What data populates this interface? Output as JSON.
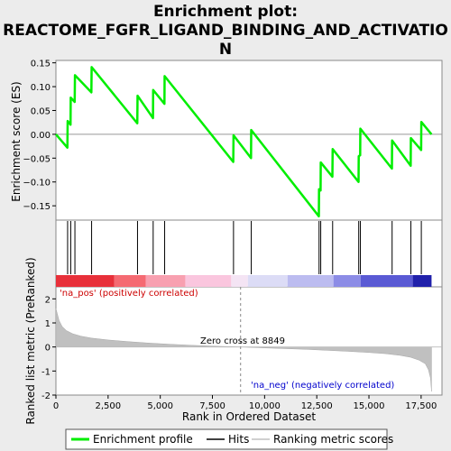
{
  "chart_data": {
    "type": "line",
    "title_lines": [
      "Enrichment plot:",
      "REACTOME_FGFR_LIGAND_BINDING_AND_ACTIVATIO",
      "N"
    ],
    "panels": {
      "enrichment": {
        "ylabel": "Enrichment score (ES)",
        "ylim": [
          -0.18,
          0.155
        ],
        "yticks": [
          -0.15,
          -0.1,
          -0.05,
          0.0,
          0.05,
          0.1,
          0.15
        ],
        "ytick_labels": [
          "−0.15",
          "−0.10",
          "−0.05",
          "0.00",
          "0.05",
          "0.10",
          "0.15"
        ],
        "series": [
          {
            "name": "Enrichment profile",
            "color": "#00ee00",
            "x": [
              0,
              550,
              560,
              700,
              710,
              900,
              910,
              1700,
              1710,
              3900,
              3910,
              4650,
              4660,
              5200,
              5210,
              8500,
              8510,
              9350,
              9360,
              12600,
              12610,
              12680,
              12690,
              13250,
              13260,
              14500,
              14510,
              14580,
              14590,
              16100,
              16110,
              17000,
              17010,
              17500,
              17510,
              18000
            ],
            "y": [
              0.0,
              -0.028,
              0.028,
              0.02,
              0.077,
              0.068,
              0.124,
              0.088,
              0.141,
              0.023,
              0.081,
              0.034,
              0.093,
              0.064,
              0.122,
              -0.058,
              -0.002,
              -0.05,
              0.009,
              -0.172,
              -0.115,
              -0.118,
              -0.059,
              -0.089,
              -0.031,
              -0.1,
              -0.046,
              -0.044,
              0.012,
              -0.072,
              -0.013,
              -0.066,
              -0.008,
              -0.033,
              0.026,
              0.0
            ]
          }
        ]
      },
      "hits": {
        "series_name": "Hits",
        "positions": [
          560,
          710,
          910,
          1710,
          3910,
          4660,
          5210,
          8510,
          9360,
          12610,
          12690,
          13260,
          14510,
          14590,
          16110,
          17010,
          17510
        ]
      },
      "ranked_metric": {
        "ylabel": "Ranked list metric (PreRanked)",
        "xlabel": "Rank in Ordered Dataset",
        "ylim": [
          -2,
          2.5
        ],
        "yticks": [
          -2,
          -1,
          0,
          1,
          2
        ],
        "ytick_labels": [
          "-2",
          "-1",
          "0",
          "1",
          "2"
        ],
        "series_name": "Ranking metric scores",
        "fill_color": "#c0c0c0",
        "x": [
          0,
          150,
          300,
          500,
          800,
          1200,
          1700,
          2500,
          3500,
          4500,
          5500,
          6500,
          7500,
          8849,
          10000,
          11000,
          12000,
          13000,
          14000,
          15000,
          15800,
          16500,
          17000,
          17400,
          17700,
          17850,
          17950,
          18000
        ],
        "y": [
          1.6,
          1.1,
          0.85,
          0.68,
          0.55,
          0.45,
          0.37,
          0.29,
          0.22,
          0.16,
          0.11,
          0.07,
          0.035,
          0.0,
          -0.04,
          -0.07,
          -0.1,
          -0.14,
          -0.18,
          -0.23,
          -0.28,
          -0.35,
          -0.43,
          -0.55,
          -0.7,
          -0.95,
          -1.3,
          -1.85
        ],
        "zero_cross_rank": 8849,
        "annotations": {
          "pos": "'na_pos' (positively correlated)",
          "neg": "'na_neg' (negatively correlated)",
          "zero": "Zero cross at 8849"
        }
      }
    },
    "xlim": [
      0,
      18500
    ],
    "xticks": [
      0,
      2500,
      5000,
      7500,
      10000,
      12500,
      15000,
      17500
    ],
    "xtick_labels": [
      "0",
      "2,500",
      "5,000",
      "7,500",
      "10,000",
      "12,500",
      "15,000",
      "17,500"
    ],
    "heatbar": {
      "segments": [
        {
          "from": 0,
          "to": 2800,
          "color": "#e8303a"
        },
        {
          "from": 2800,
          "to": 4300,
          "color": "#f56a72"
        },
        {
          "from": 4300,
          "to": 6200,
          "color": "#f8a0b0"
        },
        {
          "from": 6200,
          "to": 8400,
          "color": "#fac6de"
        },
        {
          "from": 8400,
          "to": 9200,
          "color": "#f4e4f4"
        },
        {
          "from": 9200,
          "to": 11100,
          "color": "#dcdcf6"
        },
        {
          "from": 11100,
          "to": 13300,
          "color": "#bcbcf0"
        },
        {
          "from": 13300,
          "to": 14600,
          "color": "#8c8ce6"
        },
        {
          "from": 14600,
          "to": 17100,
          "color": "#5a5ad4"
        },
        {
          "from": 17100,
          "to": 18000,
          "color": "#2020aa"
        }
      ]
    },
    "legend": {
      "placement": "bottom",
      "items": [
        {
          "label": "Enrichment profile",
          "color": "#00ee00"
        },
        {
          "label": "Hits",
          "color": "#000000"
        },
        {
          "label": "Ranking metric scores",
          "color": "#c0c0c0"
        }
      ]
    }
  }
}
